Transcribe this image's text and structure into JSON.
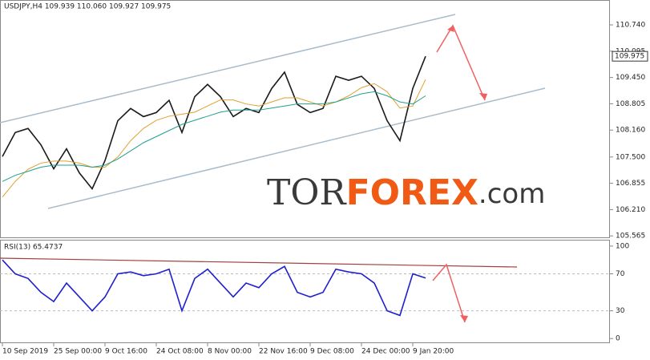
{
  "chart_data": [
    {
      "type": "line",
      "title": "USDJPY,H4  109.939 110.060 109.927 109.975",
      "ylim": [
        105.51,
        111.35
      ],
      "yticks": [
        105.565,
        {
          "value": 106.21,
          "label": "106.210"
        },
        106.855,
        {
          "value": 107.5,
          "label": "107.500"
        },
        {
          "value": 108.16,
          "label": "108.160"
        },
        108.805,
        {
          "value": 109.45,
          "label": "109.450"
        },
        110.095,
        {
          "value": 110.74,
          "label": "110.740"
        }
      ],
      "last_value_label": "109.975",
      "series": [
        {
          "color": "#1a1a1a",
          "values": [
            107.51,
            108.1,
            108.2,
            107.8,
            107.21,
            107.7,
            107.11,
            106.72,
            107.41,
            108.39,
            108.69,
            108.49,
            108.59,
            108.89,
            108.1,
            108.98,
            109.28,
            108.98,
            108.49,
            108.69,
            108.59,
            109.18,
            109.58,
            108.79,
            108.59,
            108.69,
            109.48,
            109.38,
            109.48,
            109.18,
            108.39,
            107.9,
            109.18,
            109.97
          ]
        },
        {
          "color": "#e0a030",
          "values": [
            106.52,
            106.9,
            107.2,
            107.35,
            107.4,
            107.4,
            107.35,
            107.25,
            107.25,
            107.5,
            107.9,
            108.2,
            108.4,
            108.5,
            108.55,
            108.6,
            108.75,
            108.9,
            108.9,
            108.8,
            108.75,
            108.85,
            108.95,
            108.95,
            108.85,
            108.75,
            108.85,
            109.0,
            109.2,
            109.3,
            109.1,
            108.7,
            108.75,
            109.4
          ]
        },
        {
          "color": "#20a090",
          "values": [
            106.9,
            107.05,
            107.15,
            107.25,
            107.3,
            107.3,
            107.3,
            107.25,
            107.3,
            107.45,
            107.65,
            107.85,
            108.0,
            108.15,
            108.3,
            108.4,
            108.5,
            108.6,
            108.65,
            108.65,
            108.65,
            108.7,
            108.75,
            108.8,
            108.8,
            108.8,
            108.85,
            108.95,
            109.05,
            109.1,
            109.0,
            108.85,
            108.8,
            109.0
          ]
        }
      ]
    },
    {
      "type": "line",
      "title": "RSI(13) 65.4737",
      "ylim": [
        -5,
        106
      ],
      "yticks": [
        0,
        30,
        70,
        100
      ],
      "categories": [
        "10 Sep 2019",
        null,
        null,
        null,
        "25 Sep 00:00",
        null,
        null,
        null,
        "9 Oct 16:00",
        null,
        null,
        null,
        "24 Oct 08:00",
        null,
        null,
        null,
        "8 Nov 00:00",
        null,
        null,
        null,
        "22 Nov 16:00",
        null,
        null,
        null,
        "9 Dec 08:00",
        null,
        null,
        null,
        "24 Dec 00:00",
        null,
        null,
        null,
        "9 Jan 20:00",
        null
      ],
      "series": [
        {
          "color": "#1f1fd0",
          "values": [
            85,
            70,
            65,
            50,
            40,
            60,
            45,
            30,
            45,
            70,
            72,
            68,
            70,
            75,
            30,
            65,
            75,
            60,
            45,
            60,
            55,
            70,
            78,
            50,
            45,
            50,
            75,
            72,
            70,
            60,
            30,
            25,
            70,
            65.47
          ]
        }
      ]
    }
  ],
  "watermark": {
    "part1": "TOR",
    "part2": "FOREX",
    "part3": ".com"
  }
}
